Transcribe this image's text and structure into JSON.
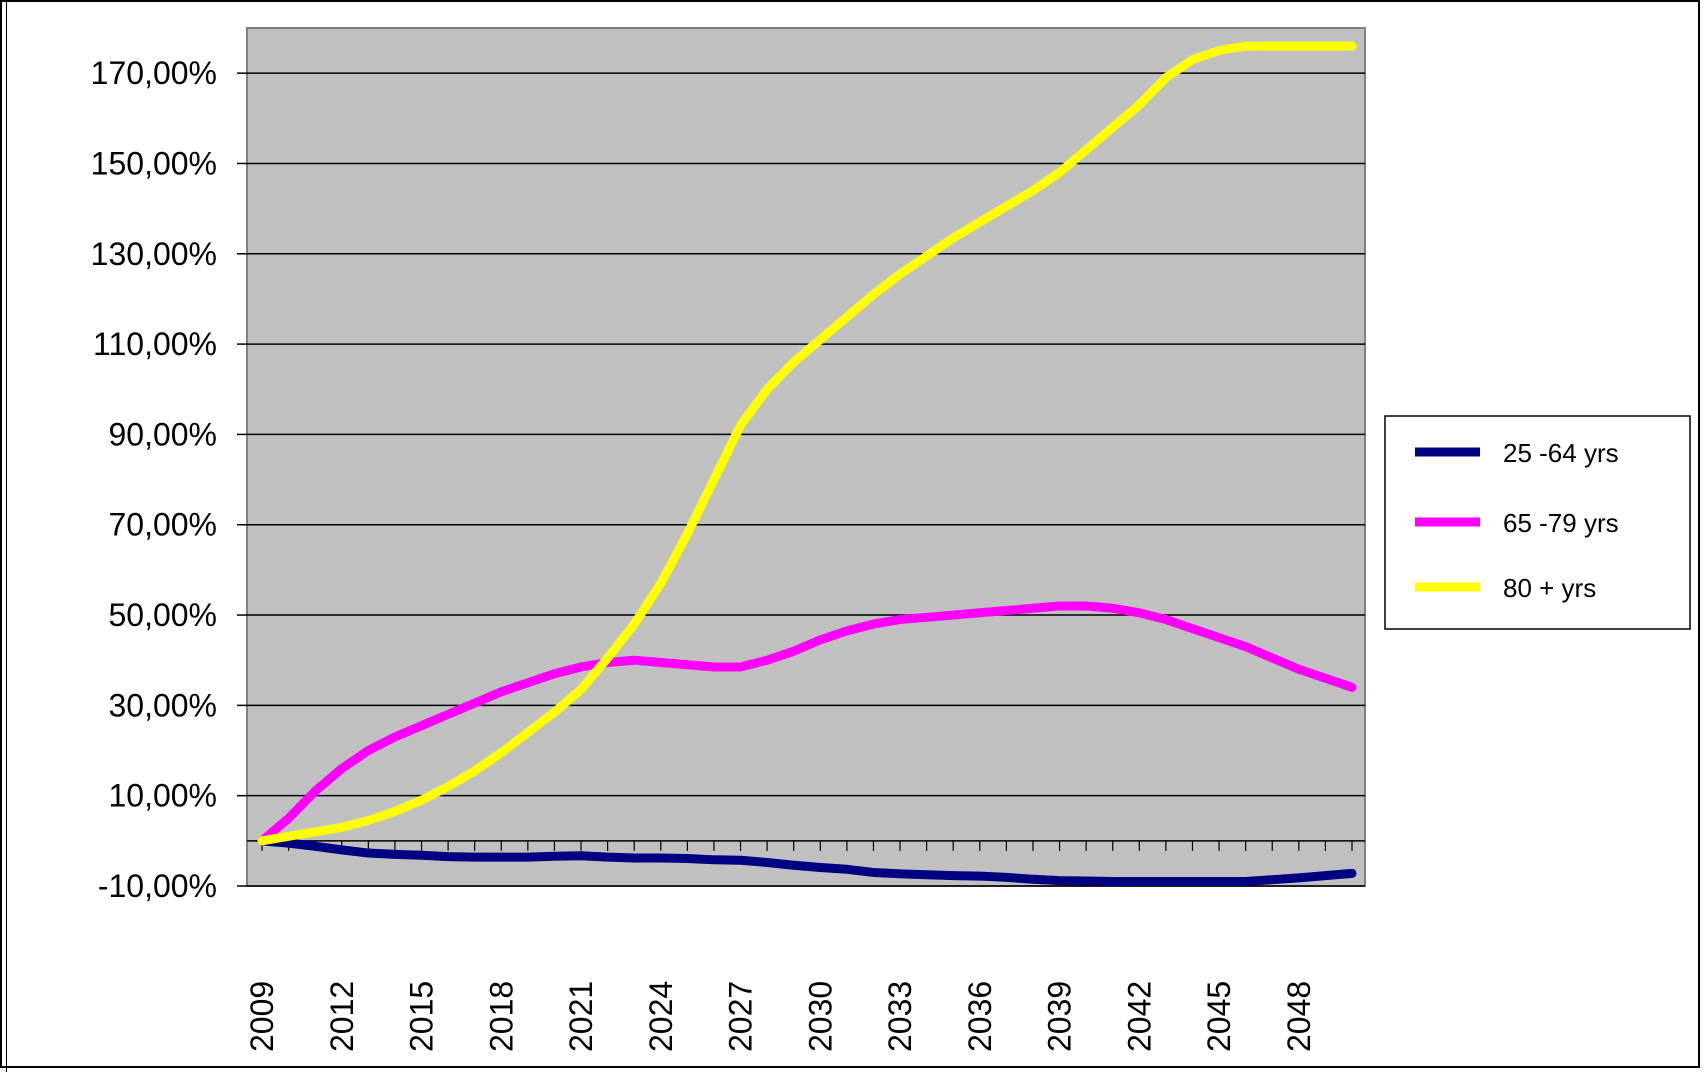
{
  "chart_data": {
    "type": "line",
    "title": "",
    "xlabel": "",
    "ylabel": "",
    "ylim": [
      -10,
      180
    ],
    "y_ticks": [
      170,
      150,
      130,
      110,
      90,
      70,
      50,
      30,
      10,
      -10
    ],
    "y_tick_labels": [
      "170,00%",
      "150,00%",
      "130,00%",
      "110,00%",
      "90,00%",
      "70,00%",
      "50,00%",
      "30,00%",
      "10,00%",
      "-10,00%"
    ],
    "x_tick_labels": [
      "2009",
      "2012",
      "2015",
      "2018",
      "2021",
      "2024",
      "2027",
      "2030",
      "2033",
      "2036",
      "2039",
      "2042",
      "2045",
      "2048"
    ],
    "x": [
      2009,
      2010,
      2011,
      2012,
      2013,
      2014,
      2015,
      2016,
      2017,
      2018,
      2019,
      2020,
      2021,
      2022,
      2023,
      2024,
      2025,
      2026,
      2027,
      2028,
      2029,
      2030,
      2031,
      2032,
      2033,
      2034,
      2035,
      2036,
      2037,
      2038,
      2039,
      2040,
      2041,
      2042,
      2043,
      2044,
      2045,
      2046,
      2047,
      2048,
      2049,
      2050
    ],
    "grid": true,
    "legend": "right",
    "plot_background": "#c0c0c0",
    "series": [
      {
        "name": "25 -64 yrs",
        "color": "#000080",
        "values": [
          0,
          -0.5,
          -1.2,
          -2,
          -2.7,
          -3,
          -3.2,
          -3.5,
          -3.6,
          -3.6,
          -3.6,
          -3.4,
          -3.3,
          -3.6,
          -3.8,
          -3.8,
          -3.9,
          -4.2,
          -4.3,
          -4.8,
          -5.4,
          -5.9,
          -6.3,
          -7,
          -7.3,
          -7.5,
          -7.7,
          -7.8,
          -8.1,
          -8.5,
          -8.8,
          -8.9,
          -9,
          -9,
          -9,
          -9,
          -9,
          -9,
          -8.6,
          -8.2,
          -7.7,
          -7.2
        ]
      },
      {
        "name": "65 -79 yrs",
        "color": "#ff00ff",
        "values": [
          0,
          5,
          11,
          16,
          20,
          23,
          25.5,
          28,
          30.5,
          33,
          35,
          37,
          38.5,
          39.5,
          40,
          39.5,
          39,
          38.5,
          38.5,
          40,
          42,
          44.5,
          46.5,
          48,
          49,
          49.5,
          50,
          50.5,
          51,
          51.5,
          52,
          52,
          51.5,
          50.5,
          49,
          47,
          45,
          43,
          40.5,
          38,
          36,
          34
        ]
      },
      {
        "name": "80 + yrs",
        "color": "#ffff00",
        "values": [
          0,
          1,
          2,
          3,
          4.5,
          6.5,
          9,
          12,
          15.5,
          19.5,
          24,
          28.5,
          33.5,
          40.5,
          48,
          57,
          68,
          80,
          92,
          100,
          106,
          111,
          116,
          121,
          125.5,
          129.5,
          133.5,
          137,
          140.5,
          144,
          148,
          153,
          158,
          163,
          169,
          173,
          175,
          176,
          176,
          176,
          176,
          176
        ]
      }
    ]
  }
}
